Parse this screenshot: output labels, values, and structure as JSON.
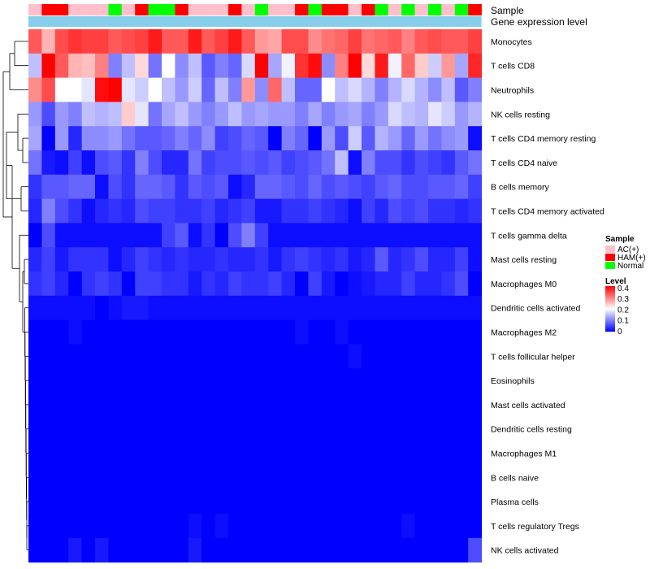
{
  "chart_data": {
    "type": "heatmap",
    "row_labels": [
      "Monocytes",
      "T cells CD8",
      "Neutrophils",
      "NK cells resting",
      "T cells CD4 memory resting",
      "T cells CD4 naive",
      "B cells memory",
      "T cells CD4 memory activated",
      "T cells gamma delta",
      "Mast cells resting",
      "Macrophages M0",
      "Dendritic cells activated",
      "Macrophages M2",
      "T cells follicular helper",
      "Eosinophils",
      "Mast cells activated",
      "Dendritic cells resting",
      "Macrophages M1",
      "B cells naive",
      "Plasma cells",
      "T cells regulatory  Tregs",
      "NK cells activated"
    ],
    "annotation_rows": [
      {
        "name": "Sample",
        "values": [
          "AC(+)",
          "HAM(+)",
          "HAM(+)",
          "AC(+)",
          "AC(+)",
          "AC(+)",
          "Normal",
          "AC(+)",
          "HAM(+)",
          "Normal",
          "Normal",
          "HAM(+)",
          "AC(+)",
          "AC(+)",
          "AC(+)",
          "HAM(+)",
          "AC(+)",
          "Normal",
          "AC(+)",
          "AC(+)",
          "HAM(+)",
          "Normal",
          "HAM(+)",
          "HAM(+)",
          "AC(+)",
          "HAM(+)",
          "Normal",
          "AC(+)",
          "Normal",
          "AC(+)",
          "Normal",
          "AC(+)",
          "Normal",
          "HAM(+)"
        ]
      },
      {
        "name": "Gene expression level",
        "color": "#87ceeb"
      }
    ],
    "values": [
      [
        0.33,
        0.26,
        0.34,
        0.36,
        0.35,
        0.35,
        0.33,
        0.34,
        0.35,
        0.38,
        0.33,
        0.33,
        0.38,
        0.33,
        0.35,
        0.38,
        0.33,
        0.28,
        0.27,
        0.34,
        0.34,
        0.29,
        0.31,
        0.32,
        0.35,
        0.31,
        0.32,
        0.33,
        0.3,
        0.33,
        0.34,
        0.33,
        0.33,
        0.35
      ],
      [
        0.15,
        0.4,
        0.33,
        0.26,
        0.25,
        0.3,
        0.1,
        0.15,
        0.23,
        0.09,
        0.2,
        0.11,
        0.15,
        0.07,
        0.1,
        0.08,
        0.17,
        0.4,
        0.13,
        0.19,
        0.36,
        0.39,
        0.11,
        0.3,
        0.4,
        0.23,
        0.38,
        0.19,
        0.32,
        0.24,
        0.16,
        0.28,
        0.13,
        0.37
      ],
      [
        0.29,
        0.34,
        0.2,
        0.2,
        0.18,
        0.39,
        0.4,
        0.18,
        0.16,
        0.2,
        0.15,
        0.12,
        0.16,
        0.08,
        0.15,
        0.1,
        0.28,
        0.11,
        0.32,
        0.15,
        0.08,
        0.08,
        0.2,
        0.15,
        0.17,
        0.14,
        0.1,
        0.14,
        0.17,
        0.14,
        0.11,
        0.15,
        0.07,
        0.1
      ],
      [
        0.12,
        0.06,
        0.12,
        0.1,
        0.15,
        0.14,
        0.15,
        0.24,
        0.18,
        0.09,
        0.13,
        0.15,
        0.12,
        0.1,
        0.12,
        0.15,
        0.12,
        0.13,
        0.12,
        0.12,
        0.1,
        0.13,
        0.1,
        0.12,
        0.13,
        0.1,
        0.12,
        0.17,
        0.15,
        0.14,
        0.18,
        0.16,
        0.12,
        0.14
      ],
      [
        0.13,
        0.0,
        0.12,
        0.03,
        0.11,
        0.11,
        0.12,
        0.09,
        0.07,
        0.07,
        0.08,
        0.1,
        0.08,
        0.11,
        0.05,
        0.06,
        0.08,
        0.07,
        0.0,
        0.1,
        0.08,
        0.0,
        0.12,
        0.06,
        0.16,
        0.07,
        0.14,
        0.12,
        0.08,
        0.12,
        0.09,
        0.11,
        0.12,
        0.01
      ],
      [
        0.09,
        0.02,
        0.01,
        0.05,
        0.01,
        0.06,
        0.07,
        0.04,
        0.1,
        0.06,
        0.03,
        0.03,
        0.09,
        0.05,
        0.06,
        0.06,
        0.07,
        0.06,
        0.07,
        0.05,
        0.06,
        0.07,
        0.09,
        0.15,
        0.01,
        0.1,
        0.06,
        0.06,
        0.04,
        0.06,
        0.05,
        0.04,
        0.07,
        0.09
      ],
      [
        0.04,
        0.07,
        0.07,
        0.08,
        0.08,
        0.01,
        0.06,
        0.04,
        0.08,
        0.08,
        0.07,
        0.04,
        0.07,
        0.06,
        0.07,
        0.01,
        0.03,
        0.08,
        0.08,
        0.07,
        0.06,
        0.08,
        0.06,
        0.07,
        0.06,
        0.05,
        0.07,
        0.08,
        0.06,
        0.06,
        0.07,
        0.07,
        0.08,
        0.05
      ],
      [
        0.03,
        0.1,
        0.06,
        0.04,
        0.01,
        0.03,
        0.04,
        0.03,
        0.06,
        0.05,
        0.05,
        0.04,
        0.04,
        0.05,
        0.03,
        0.04,
        0.05,
        0.02,
        0.02,
        0.04,
        0.04,
        0.05,
        0.04,
        0.03,
        0.01,
        0.05,
        0.03,
        0.06,
        0.05,
        0.06,
        0.04,
        0.04,
        0.03,
        0.04
      ],
      [
        0.0,
        0.06,
        0.01,
        0.01,
        0.01,
        0.01,
        0.01,
        0.01,
        0.01,
        0.01,
        0.05,
        0.07,
        0.01,
        0.04,
        0.0,
        0.06,
        0.1,
        0.05,
        0.01,
        0.01,
        0.01,
        0.01,
        0.01,
        0.01,
        0.01,
        0.01,
        0.01,
        0.01,
        0.01,
        0.01,
        0.01,
        0.01,
        0.01,
        0.01
      ],
      [
        0.03,
        0.05,
        0.02,
        0.04,
        0.04,
        0.04,
        0.01,
        0.03,
        0.05,
        0.04,
        0.03,
        0.04,
        0.03,
        0.03,
        0.04,
        0.03,
        0.03,
        0.04,
        0.02,
        0.04,
        0.05,
        0.04,
        0.03,
        0.04,
        0.02,
        0.03,
        0.07,
        0.03,
        0.04,
        0.06,
        0.03,
        0.03,
        0.05,
        0.01
      ],
      [
        0.04,
        0.05,
        0.03,
        0.0,
        0.04,
        0.05,
        0.04,
        0.0,
        0.05,
        0.05,
        0.04,
        0.04,
        0.02,
        0.04,
        0.03,
        0.05,
        0.04,
        0.04,
        0.05,
        0.03,
        0.0,
        0.05,
        0.02,
        0.0,
        0.01,
        0.02,
        0.03,
        0.03,
        0.05,
        0.03,
        0.03,
        0.04,
        0.06,
        0.0
      ],
      [
        0.01,
        0.01,
        0.01,
        0.01,
        0.01,
        0.0,
        0.01,
        0.02,
        0.02,
        0.01,
        0.01,
        0.01,
        0.01,
        0.01,
        0.01,
        0.01,
        0.01,
        0.01,
        0.01,
        0.01,
        0.01,
        0.01,
        0.01,
        0.01,
        0.01,
        0.01,
        0.01,
        0.01,
        0.01,
        0.01,
        0.01,
        0.01,
        0.01,
        0.01
      ],
      [
        0.0,
        0.0,
        0.0,
        0.01,
        0.0,
        0.0,
        0.0,
        0.0,
        0.0,
        0.0,
        0.0,
        0.0,
        0.0,
        0.0,
        0.0,
        0.0,
        0.0,
        0.0,
        0.0,
        0.0,
        0.01,
        0.0,
        0.0,
        0.01,
        0.0,
        0.0,
        0.0,
        0.0,
        0.0,
        0.0,
        0.0,
        0.0,
        0.0,
        0.0
      ],
      [
        0.0,
        0.0,
        0.0,
        0.0,
        0.0,
        0.0,
        0.0,
        0.0,
        0.0,
        0.0,
        0.0,
        0.0,
        0.0,
        0.0,
        0.0,
        0.0,
        0.0,
        0.0,
        0.0,
        0.0,
        0.0,
        0.0,
        0.0,
        0.0,
        0.01,
        0.0,
        0.0,
        0.0,
        0.0,
        0.0,
        0.0,
        0.0,
        0.0,
        0.0
      ],
      [
        0.0,
        0.0,
        0.0,
        0.0,
        0.0,
        0.0,
        0.0,
        0.0,
        0.0,
        0.0,
        0.0,
        0.0,
        0.0,
        0.0,
        0.0,
        0.0,
        0.0,
        0.0,
        0.0,
        0.0,
        0.0,
        0.0,
        0.0,
        0.0,
        0.0,
        0.0,
        0.0,
        0.0,
        0.0,
        0.0,
        0.0,
        0.0,
        0.0,
        0.0
      ],
      [
        0.0,
        0.0,
        0.0,
        0.0,
        0.0,
        0.0,
        0.0,
        0.0,
        0.0,
        0.0,
        0.0,
        0.0,
        0.0,
        0.0,
        0.0,
        0.0,
        0.0,
        0.0,
        0.0,
        0.0,
        0.0,
        0.0,
        0.0,
        0.0,
        0.0,
        0.0,
        0.0,
        0.0,
        0.0,
        0.0,
        0.0,
        0.0,
        0.0,
        0.0
      ],
      [
        0.0,
        0.0,
        0.0,
        0.0,
        0.0,
        0.0,
        0.0,
        0.0,
        0.0,
        0.0,
        0.0,
        0.0,
        0.0,
        0.0,
        0.0,
        0.0,
        0.0,
        0.0,
        0.0,
        0.0,
        0.0,
        0.0,
        0.0,
        0.0,
        0.0,
        0.0,
        0.0,
        0.0,
        0.0,
        0.0,
        0.0,
        0.0,
        0.0,
        0.0
      ],
      [
        0.0,
        0.0,
        0.0,
        0.0,
        0.0,
        0.0,
        0.0,
        0.0,
        0.0,
        0.0,
        0.0,
        0.0,
        0.0,
        0.0,
        0.0,
        0.0,
        0.0,
        0.0,
        0.0,
        0.0,
        0.0,
        0.0,
        0.0,
        0.0,
        0.0,
        0.0,
        0.0,
        0.0,
        0.0,
        0.0,
        0.0,
        0.0,
        0.0,
        0.0
      ],
      [
        0.0,
        0.0,
        0.0,
        0.0,
        0.0,
        0.0,
        0.0,
        0.0,
        0.0,
        0.0,
        0.0,
        0.0,
        0.0,
        0.0,
        0.0,
        0.0,
        0.0,
        0.0,
        0.0,
        0.0,
        0.0,
        0.0,
        0.0,
        0.0,
        0.0,
        0.0,
        0.0,
        0.0,
        0.0,
        0.0,
        0.0,
        0.0,
        0.0,
        0.0
      ],
      [
        0.0,
        0.0,
        0.0,
        0.0,
        0.0,
        0.0,
        0.0,
        0.0,
        0.0,
        0.0,
        0.0,
        0.0,
        0.0,
        0.0,
        0.0,
        0.0,
        0.0,
        0.0,
        0.0,
        0.0,
        0.0,
        0.0,
        0.0,
        0.0,
        0.0,
        0.0,
        0.0,
        0.0,
        0.0,
        0.0,
        0.0,
        0.0,
        0.0,
        0.0
      ],
      [
        0.0,
        0.0,
        0.0,
        0.0,
        0.0,
        0.0,
        0.0,
        0.0,
        0.0,
        0.0,
        0.0,
        0.0,
        0.01,
        0.0,
        0.01,
        0.0,
        0.0,
        0.0,
        0.0,
        0.0,
        0.0,
        0.0,
        0.0,
        0.0,
        0.0,
        0.0,
        0.0,
        0.0,
        0.01,
        0.0,
        0.0,
        0.0,
        0.0,
        0.0
      ],
      [
        0.0,
        0.0,
        0.0,
        0.02,
        0.0,
        0.02,
        0.0,
        0.0,
        0.0,
        0.0,
        0.0,
        0.0,
        0.02,
        0.0,
        0.0,
        0.0,
        0.0,
        0.0,
        0.0,
        0.0,
        0.0,
        0.0,
        0.0,
        0.0,
        0.0,
        0.0,
        0.0,
        0.0,
        0.0,
        0.0,
        0.0,
        0.0,
        0.0,
        0.06
      ]
    ],
    "color_scale": {
      "min": 0,
      "mid": 0.2,
      "max": 0.4,
      "low_color": "#0000ff",
      "mid_color": "#ffffff",
      "high_color": "#ff0000"
    },
    "legends": [
      {
        "title": "Sample",
        "entries": [
          {
            "label": "AC(+)",
            "color": "#ffc0cb"
          },
          {
            "label": "HAM(+)",
            "color": "#ff0000"
          },
          {
            "label": "Normal",
            "color": "#00ff00"
          }
        ]
      },
      {
        "title": "Level",
        "ticks": [
          "0.4",
          "0.3",
          "0.2",
          "0.1",
          "0"
        ]
      }
    ],
    "dendrogram": "row clustering (left side)"
  }
}
